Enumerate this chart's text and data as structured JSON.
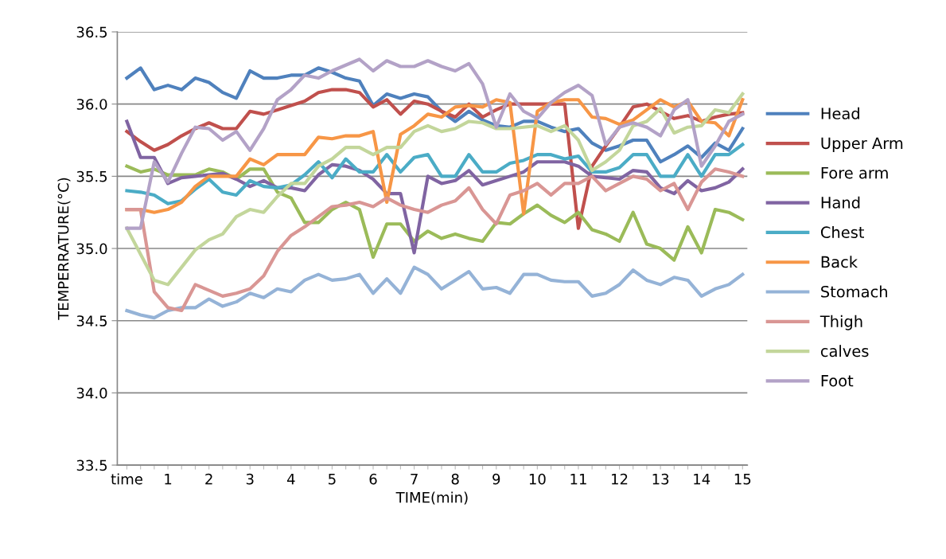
{
  "chart_data": {
    "type": "line",
    "xlabel": "TIME(min)",
    "ylabel": "TEMPERRATURE(°C)",
    "categories": [
      "time",
      null,
      null,
      "1",
      null,
      null,
      "2",
      null,
      null,
      "3",
      null,
      null,
      "4",
      null,
      null,
      "5",
      null,
      null,
      "6",
      null,
      null,
      "7",
      null,
      null,
      "8",
      null,
      null,
      "9",
      null,
      null,
      "10",
      null,
      null,
      "11",
      null,
      null,
      "12",
      null,
      null,
      "13",
      null,
      null,
      "14",
      null,
      null,
      "15"
    ],
    "ylim": [
      33.5,
      36.5
    ],
    "yticks": [
      {
        "value": 33.5,
        "label": "33.5"
      },
      {
        "value": 34.0,
        "label": "34.0"
      },
      {
        "value": 34.5,
        "label": "34.5"
      },
      {
        "value": 35.0,
        "label": "35.0"
      },
      {
        "value": 35.5,
        "label": "35.5"
      },
      {
        "value": 36.0,
        "label": "36.0"
      },
      {
        "value": 36.5,
        "label": "36.5"
      }
    ],
    "grid": "y",
    "legend": "right",
    "marker": "none",
    "line_style": "solid",
    "series": [
      {
        "name": "Head",
        "color": "#4f81bd",
        "values": [
          36.18,
          36.25,
          36.1,
          36.13,
          36.1,
          36.18,
          36.15,
          36.08,
          36.04,
          36.23,
          36.18,
          36.18,
          36.2,
          36.2,
          36.25,
          36.22,
          36.18,
          36.16,
          35.99,
          36.07,
          36.04,
          36.07,
          36.05,
          35.95,
          35.88,
          35.95,
          35.89,
          35.85,
          35.84,
          35.88,
          35.88,
          35.84,
          35.81,
          35.83,
          35.73,
          35.68,
          35.71,
          35.75,
          35.75,
          35.6,
          35.65,
          35.71,
          35.63,
          35.73,
          35.68,
          35.83
        ]
      },
      {
        "name": "Upper Arm",
        "color": "#c0504d",
        "values": [
          35.81,
          35.74,
          35.68,
          35.72,
          35.78,
          35.83,
          35.87,
          35.83,
          35.83,
          35.95,
          35.93,
          35.96,
          35.99,
          36.02,
          36.08,
          36.1,
          36.1,
          36.08,
          35.98,
          36.03,
          35.93,
          36.02,
          36.0,
          35.95,
          35.91,
          36.0,
          35.91,
          35.96,
          36.0,
          36.0,
          36.0,
          36.0,
          36.0,
          35.14,
          35.57,
          35.71,
          35.84,
          35.98,
          36.0,
          35.95,
          35.9,
          35.92,
          35.88,
          35.91,
          35.93,
          35.94
        ]
      },
      {
        "name": "Fore arm",
        "color": "#9bbb59",
        "values": [
          35.57,
          35.53,
          35.55,
          35.51,
          35.51,
          35.51,
          35.55,
          35.53,
          35.48,
          35.55,
          35.55,
          35.39,
          35.35,
          35.18,
          35.18,
          35.27,
          35.32,
          35.27,
          34.94,
          35.17,
          35.17,
          35.05,
          35.12,
          35.07,
          35.1,
          35.07,
          35.05,
          35.18,
          35.17,
          35.24,
          35.3,
          35.23,
          35.18,
          35.25,
          35.13,
          35.1,
          35.05,
          35.25,
          35.03,
          35.0,
          34.92,
          35.15,
          34.97,
          35.27,
          35.25,
          35.2
        ]
      },
      {
        "name": "Hand",
        "color": "#8064a2",
        "values": [
          35.88,
          35.63,
          35.63,
          35.45,
          35.49,
          35.5,
          35.51,
          35.52,
          35.48,
          35.43,
          35.47,
          35.42,
          35.42,
          35.4,
          35.51,
          35.58,
          35.57,
          35.54,
          35.48,
          35.38,
          35.38,
          34.97,
          35.5,
          35.45,
          35.47,
          35.54,
          35.44,
          35.47,
          35.5,
          35.53,
          35.6,
          35.6,
          35.6,
          35.57,
          35.5,
          35.49,
          35.48,
          35.54,
          35.53,
          35.42,
          35.38,
          35.47,
          35.4,
          35.42,
          35.46,
          35.55
        ]
      },
      {
        "name": "Chest",
        "color": "#4bacc6",
        "values": [
          35.4,
          35.39,
          35.37,
          35.31,
          35.33,
          35.41,
          35.48,
          35.39,
          35.37,
          35.47,
          35.43,
          35.42,
          35.44,
          35.51,
          35.6,
          35.49,
          35.62,
          35.53,
          35.53,
          35.65,
          35.53,
          35.63,
          35.65,
          35.5,
          35.5,
          35.65,
          35.53,
          35.53,
          35.59,
          35.61,
          35.65,
          35.65,
          35.62,
          35.64,
          35.53,
          35.53,
          35.56,
          35.65,
          35.65,
          35.5,
          35.5,
          35.65,
          35.5,
          35.65,
          35.65,
          35.72
        ]
      },
      {
        "name": "Back",
        "color": "#f79646",
        "values": [
          35.27,
          35.27,
          35.25,
          35.27,
          35.32,
          35.43,
          35.5,
          35.5,
          35.5,
          35.62,
          35.58,
          35.65,
          35.65,
          35.65,
          35.77,
          35.76,
          35.78,
          35.78,
          35.81,
          35.32,
          35.79,
          35.85,
          35.93,
          35.91,
          35.98,
          35.99,
          35.98,
          36.03,
          36.01,
          35.24,
          35.95,
          36.01,
          36.03,
          36.03,
          35.91,
          35.9,
          35.86,
          35.89,
          35.96,
          36.03,
          35.98,
          36.02,
          35.88,
          35.87,
          35.78,
          36.03
        ]
      },
      {
        "name": "Stomach",
        "color": "#95b3d7",
        "values": [
          34.57,
          34.54,
          34.52,
          34.57,
          34.59,
          34.59,
          34.65,
          34.6,
          34.63,
          34.69,
          34.66,
          34.72,
          34.7,
          34.78,
          34.82,
          34.78,
          34.79,
          34.82,
          34.69,
          34.79,
          34.69,
          34.87,
          34.82,
          34.72,
          34.78,
          34.84,
          34.72,
          34.73,
          34.69,
          34.82,
          34.82,
          34.78,
          34.77,
          34.77,
          34.67,
          34.69,
          34.75,
          34.85,
          34.78,
          34.75,
          34.8,
          34.78,
          34.67,
          34.72,
          34.75,
          34.82
        ]
      },
      {
        "name": "Thigh",
        "color": "#d99694",
        "values": [
          35.27,
          35.27,
          34.7,
          34.59,
          34.57,
          34.75,
          34.71,
          34.67,
          34.69,
          34.72,
          34.81,
          34.98,
          35.09,
          35.15,
          35.22,
          35.29,
          35.3,
          35.32,
          35.29,
          35.35,
          35.3,
          35.27,
          35.25,
          35.3,
          35.33,
          35.42,
          35.27,
          35.17,
          35.37,
          35.4,
          35.45,
          35.37,
          35.45,
          35.45,
          35.5,
          35.4,
          35.45,
          35.5,
          35.48,
          35.4,
          35.45,
          35.27,
          35.46,
          35.55,
          35.53,
          35.5
        ]
      },
      {
        "name": "calves",
        "color": "#c3d69b",
        "values": [
          35.14,
          34.96,
          34.78,
          34.75,
          34.87,
          34.99,
          35.06,
          35.1,
          35.22,
          35.27,
          35.25,
          35.36,
          35.45,
          35.45,
          35.57,
          35.62,
          35.7,
          35.7,
          35.65,
          35.7,
          35.7,
          35.81,
          35.85,
          35.81,
          35.83,
          35.88,
          35.87,
          35.83,
          35.83,
          35.84,
          35.85,
          35.81,
          35.85,
          35.75,
          35.54,
          35.6,
          35.68,
          35.85,
          35.88,
          35.97,
          35.8,
          35.84,
          35.85,
          35.96,
          35.94,
          36.07
        ]
      },
      {
        "name": "Foot",
        "color": "#b3a2c7",
        "values": [
          35.14,
          35.14,
          35.6,
          35.46,
          35.66,
          35.84,
          35.83,
          35.75,
          35.81,
          35.68,
          35.83,
          36.03,
          36.1,
          36.2,
          36.18,
          36.23,
          36.27,
          36.31,
          36.23,
          36.3,
          36.26,
          36.26,
          36.3,
          36.26,
          36.23,
          36.28,
          36.14,
          35.84,
          36.07,
          35.95,
          35.9,
          36.01,
          36.08,
          36.13,
          36.06,
          35.72,
          35.84,
          35.87,
          35.84,
          35.78,
          35.96,
          36.03,
          35.57,
          35.71,
          35.88,
          35.93
        ]
      }
    ]
  }
}
